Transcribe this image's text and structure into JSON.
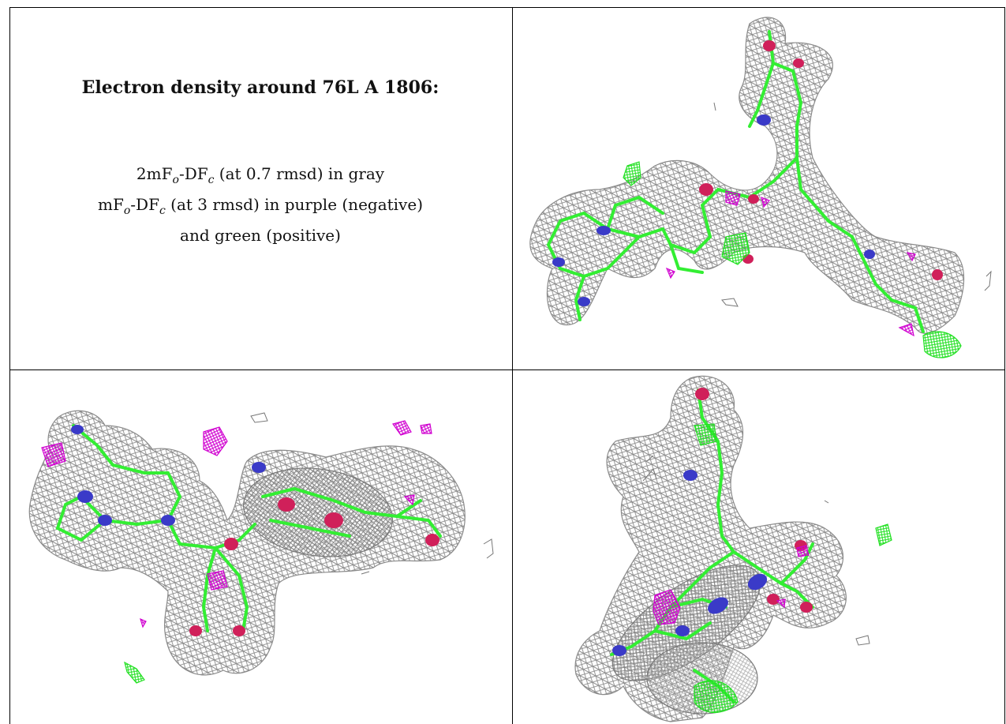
{
  "caption": {
    "title": "Electron density around 76L A 1806:",
    "line1": {
      "text": "2mF",
      "sub1": "o",
      "mid": "-DF",
      "sub2": "c",
      "rest": " (at 0.7 rmsd) in gray"
    },
    "line2": {
      "text": "mF",
      "sub1": "o",
      "mid": "-DF",
      "sub2": "c",
      "rest": " (at 3 rmsd) in purple (negative)"
    },
    "line3": "and green (positive)"
  },
  "colors": {
    "mesh": "#8a8a8a",
    "bond": "#33ee33",
    "nitrogen": "#3a3ac8",
    "oxygen": "#d0205a",
    "negative_density": "#d000d0",
    "positive_density": "#22e022",
    "background": "#ffffff"
  },
  "panels": [
    {
      "id": "top-right",
      "view": "view-1"
    },
    {
      "id": "bottom-left",
      "view": "view-2"
    },
    {
      "id": "bottom-right",
      "view": "view-3"
    }
  ]
}
